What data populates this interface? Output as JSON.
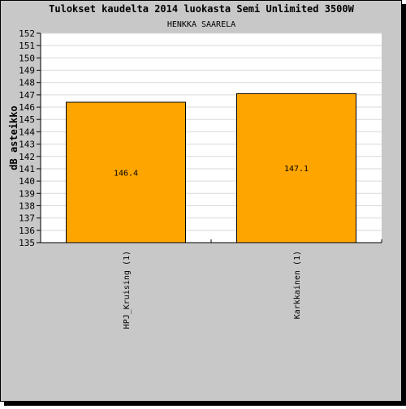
{
  "colors": {
    "background": "#c8c8c8",
    "plot_background": "#ffffff",
    "bar_fill": "#ffa500",
    "bar_stroke": "#000000",
    "grid": "#d9d9d9",
    "text": "#000000"
  },
  "chart_data": {
    "type": "bar",
    "title": "Tulokset kaudelta 2014 luokasta Semi Unlimited 3500W",
    "subtitle": "HENKKA SAARELA",
    "xlabel": "",
    "ylabel": "dB asteikko",
    "ylim": [
      135,
      152
    ],
    "yticks": [
      135,
      136,
      137,
      138,
      139,
      140,
      141,
      142,
      143,
      144,
      145,
      146,
      147,
      148,
      149,
      150,
      151,
      152
    ],
    "grid": true,
    "categories": [
      "HPJ_Kruising (1)",
      "Karkkainen (1)"
    ],
    "values": [
      146.4,
      147.1
    ],
    "data_labels": [
      "146.4",
      "147.1"
    ]
  }
}
